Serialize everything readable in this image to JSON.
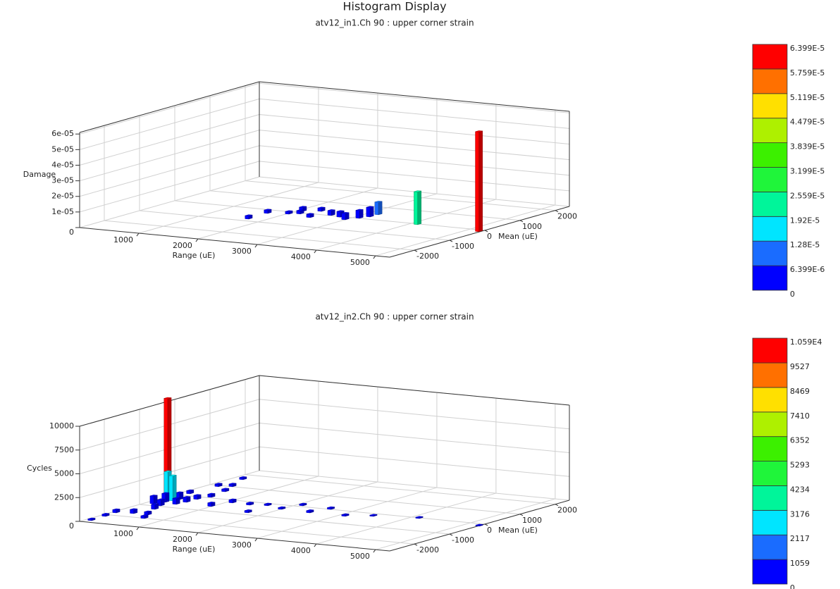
{
  "title": "Histogram Display",
  "chart_data": [
    {
      "type": "bar3d",
      "subtitle": "atv12_in1.Ch 90 : upper corner strain",
      "xlabel": "Range (uE)",
      "ylabel": "Mean (uE)",
      "zlabel": "Damage",
      "xlim": [
        0,
        5240
      ],
      "xticks": [
        1000,
        2000,
        3000,
        4000,
        5000
      ],
      "ylim": [
        -2700,
        2400
      ],
      "yticks": [
        -2000,
        -1000,
        0,
        1000,
        2000
      ],
      "zlim": [
        0,
        6.1e-05
      ],
      "zticks": [
        0,
        {
          "value": 1e-05,
          "label": "1e-05"
        },
        {
          "value": 2e-05,
          "label": "2e-05"
        },
        {
          "value": 3e-05,
          "label": "3e-05"
        },
        {
          "value": 4e-05,
          "label": "4e-05"
        },
        {
          "value": 5e-05,
          "label": "5e-05"
        },
        {
          "value": 6e-05,
          "label": "6e-05"
        }
      ],
      "grid": true,
      "colorbar": {
        "ticks": [
          0,
          {
            "value": 6.399e-06,
            "label": "6.399E-6"
          },
          {
            "value": 1.28e-05,
            "label": "1.28E-5"
          },
          {
            "value": 1.92e-05,
            "label": "1.92E-5"
          },
          {
            "value": 2.559e-05,
            "label": "2.559E-5"
          },
          {
            "value": 3.199e-05,
            "label": "3.199E-5"
          },
          {
            "value": 3.839e-05,
            "label": "3.839E-5"
          },
          {
            "value": 4.479e-05,
            "label": "4.479E-5"
          },
          {
            "value": 5.119e-05,
            "label": "5.119E-5"
          },
          {
            "value": 5.759e-05,
            "label": "5.759E-5"
          },
          {
            "value": 6.399e-05,
            "label": "6.399E-5"
          }
        ],
        "colors": [
          "#0000ff",
          "#1a6cff",
          "#00e5ff",
          "#00f59a",
          "#1ff53a",
          "#3cf000",
          "#aef000",
          "#ffe000",
          "#ff7000",
          "#ff0000"
        ]
      },
      "bars": {
        "range": [
          1726,
          1714,
          2013,
          2064,
          2437,
          2150,
          2610,
          2977,
          3092,
          3162,
          3174,
          2800,
          2300,
          4110,
          5200
        ],
        "mean": [
          -800,
          -240,
          -140,
          170,
          -250,
          -50,
          60,
          -160,
          50,
          230,
          450,
          0,
          300,
          -10,
          -100
        ],
        "values": [
          2e-06,
          2e-06,
          1.5e-06,
          2.5e-06,
          2e-06,
          2e-06,
          3e-06,
          4e-06,
          5e-06,
          6e-06,
          8e-06,
          3.5e-06,
          2e-06,
          2.1e-05,
          6.399e-05
        ]
      }
    },
    {
      "type": "bar3d",
      "subtitle": "atv12_in2.Ch 90 : upper corner strain",
      "xlabel": "Range (uE)",
      "ylabel": "Mean (uE)",
      "zlabel": "Cycles",
      "xlim": [
        0,
        5240
      ],
      "xticks": [
        1000,
        2000,
        3000,
        4000,
        5000
      ],
      "ylim": [
        -2700,
        2400
      ],
      "yticks": [
        -2000,
        -1000,
        0,
        1000,
        2000
      ],
      "zlim": [
        0,
        10000
      ],
      "zticks": [
        0,
        2500,
        5000,
        7500,
        10000
      ],
      "grid": true,
      "colorbar": {
        "ticks": [
          0,
          1059,
          2117,
          3176,
          4234,
          5293,
          6352,
          7410,
          8469,
          9527,
          {
            "value": 10590,
            "label": "1.059E4"
          }
        ],
        "colors": [
          "#0000ff",
          "#1a6cff",
          "#00e5ff",
          "#00f59a",
          "#1ff53a",
          "#3cf000",
          "#aef000",
          "#ffe000",
          "#ff7000",
          "#ff0000"
        ]
      },
      "bars": {
        "range": [
          88,
          76,
          53,
          306,
          661,
          547,
          384,
          430,
          469,
          476,
          559,
          485,
          171,
          352,
          969,
          1079,
          1396,
          1650,
          1717,
          1986,
          2095,
          2500,
          2609,
          3102,
          3458,
          4132,
          5235,
          134,
          174,
          200,
          260,
          120,
          300,
          100,
          150,
          228
        ],
        "mean": [
          -2510,
          -2090,
          -1750,
          -1680,
          -1970,
          -1680,
          -1210,
          -680,
          -450,
          -160,
          100,
          620,
          1650,
          1050,
          -590,
          -170,
          -210,
          -130,
          -800,
          -300,
          120,
          -360,
          50,
          -370,
          -170,
          0,
          -150,
          210,
          950,
          -600,
          -300,
          -800,
          -900,
          -370,
          -450,
          -440
        ],
        "values": [
          150,
          200,
          300,
          400,
          250,
          300,
          500,
          600,
          500,
          400,
          300,
          250,
          200,
          250,
          350,
          300,
          200,
          150,
          200,
          150,
          150,
          200,
          150,
          150,
          100,
          100,
          80,
          300,
          250,
          900,
          700,
          800,
          600,
          10590,
          3000,
          2600
        ]
      }
    }
  ]
}
